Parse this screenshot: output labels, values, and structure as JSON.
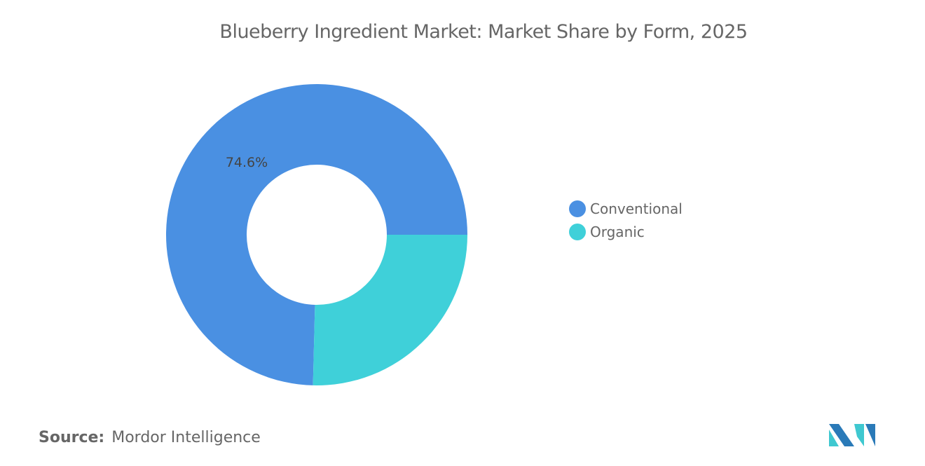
{
  "chart_data": {
    "type": "pie",
    "subtype": "donut",
    "title": "Blueberry Ingredient Market: Market Share by Form, 2025",
    "categories": [
      "Conventional",
      "Organic"
    ],
    "values": [
      74.6,
      25.4
    ],
    "data_labels": [
      "74.6%",
      ""
    ],
    "colors": [
      "#4a90e2",
      "#3fd0d9"
    ],
    "legend_placement": "right"
  },
  "source": {
    "label": "Source:",
    "value": "Mordor Intelligence"
  },
  "logo": {
    "colors": [
      "#2a7ab8",
      "#3fc8d0"
    ]
  }
}
